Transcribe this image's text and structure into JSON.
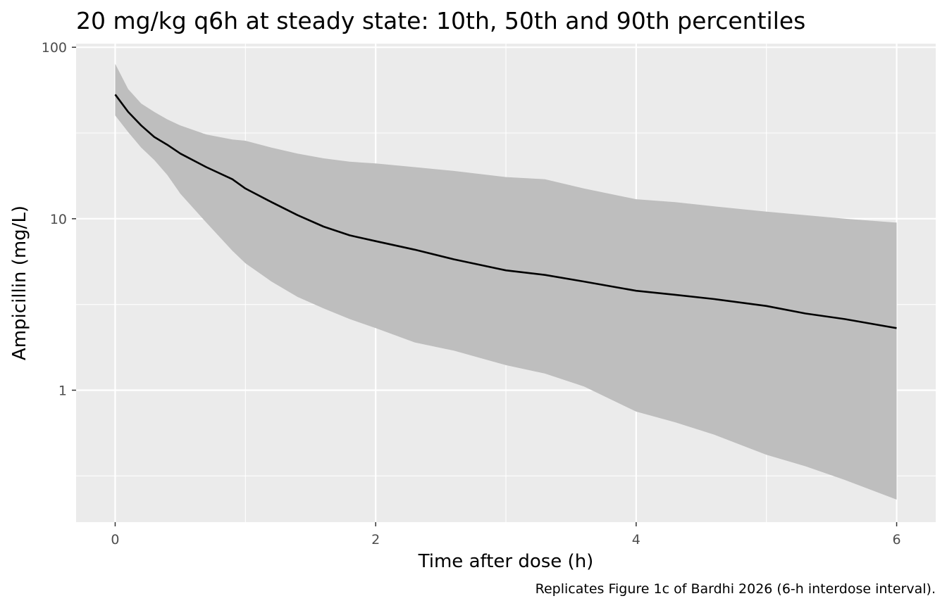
{
  "chart_data": {
    "type": "area",
    "title": "20 mg/kg q6h at steady state: 10th, 50th and 90th percentiles",
    "xlabel": "Time after dose (h)",
    "ylabel": "Ampicillin (mg/L)",
    "caption": "Replicates Figure 1c of Bardhi 2026 (6-h interdose interval).",
    "x_scale": "linear",
    "y_scale": "log10",
    "xlim": [
      -0.3,
      6.3
    ],
    "ylim": [
      0.17,
      105
    ],
    "x_ticks": [
      0,
      2,
      4,
      6
    ],
    "x_tick_labels": [
      "0",
      "2",
      "4",
      "6"
    ],
    "y_ticks": [
      1,
      10,
      100
    ],
    "y_tick_labels": [
      "1",
      "10",
      "100"
    ],
    "grid": true,
    "panel_background": "#EBEBEB",
    "ribbon_color": "#BEBEBE",
    "line_color": "#000000",
    "x": [
      0,
      0.1,
      0.2,
      0.3,
      0.4,
      0.5,
      0.7,
      0.9,
      1.0,
      1.2,
      1.4,
      1.6,
      1.8,
      2.0,
      2.3,
      2.6,
      3.0,
      3.3,
      3.6,
      4.0,
      4.3,
      4.6,
      5.0,
      5.3,
      5.6,
      6.0
    ],
    "series": [
      {
        "name": "90th percentile",
        "values": [
          80,
          57,
          47,
          42,
          38,
          35,
          31,
          29,
          28.5,
          26,
          24,
          22.5,
          21.5,
          21,
          20,
          19,
          17.5,
          17,
          15,
          13,
          12.5,
          11.8,
          11,
          10.5,
          10,
          9.5
        ]
      },
      {
        "name": "50th percentile",
        "values": [
          53,
          42,
          35,
          30,
          27,
          24,
          20,
          17,
          15,
          12.5,
          10.5,
          9,
          8,
          7.4,
          6.6,
          5.8,
          5,
          4.7,
          4.3,
          3.8,
          3.6,
          3.4,
          3.1,
          2.8,
          2.6,
          2.3
        ]
      },
      {
        "name": "10th percentile",
        "values": [
          40,
          32,
          26,
          22,
          18,
          14,
          9.5,
          6.5,
          5.5,
          4.3,
          3.5,
          3,
          2.6,
          2.3,
          1.9,
          1.7,
          1.4,
          1.25,
          1.05,
          0.75,
          0.65,
          0.55,
          0.42,
          0.36,
          0.3,
          0.23
        ]
      }
    ]
  }
}
